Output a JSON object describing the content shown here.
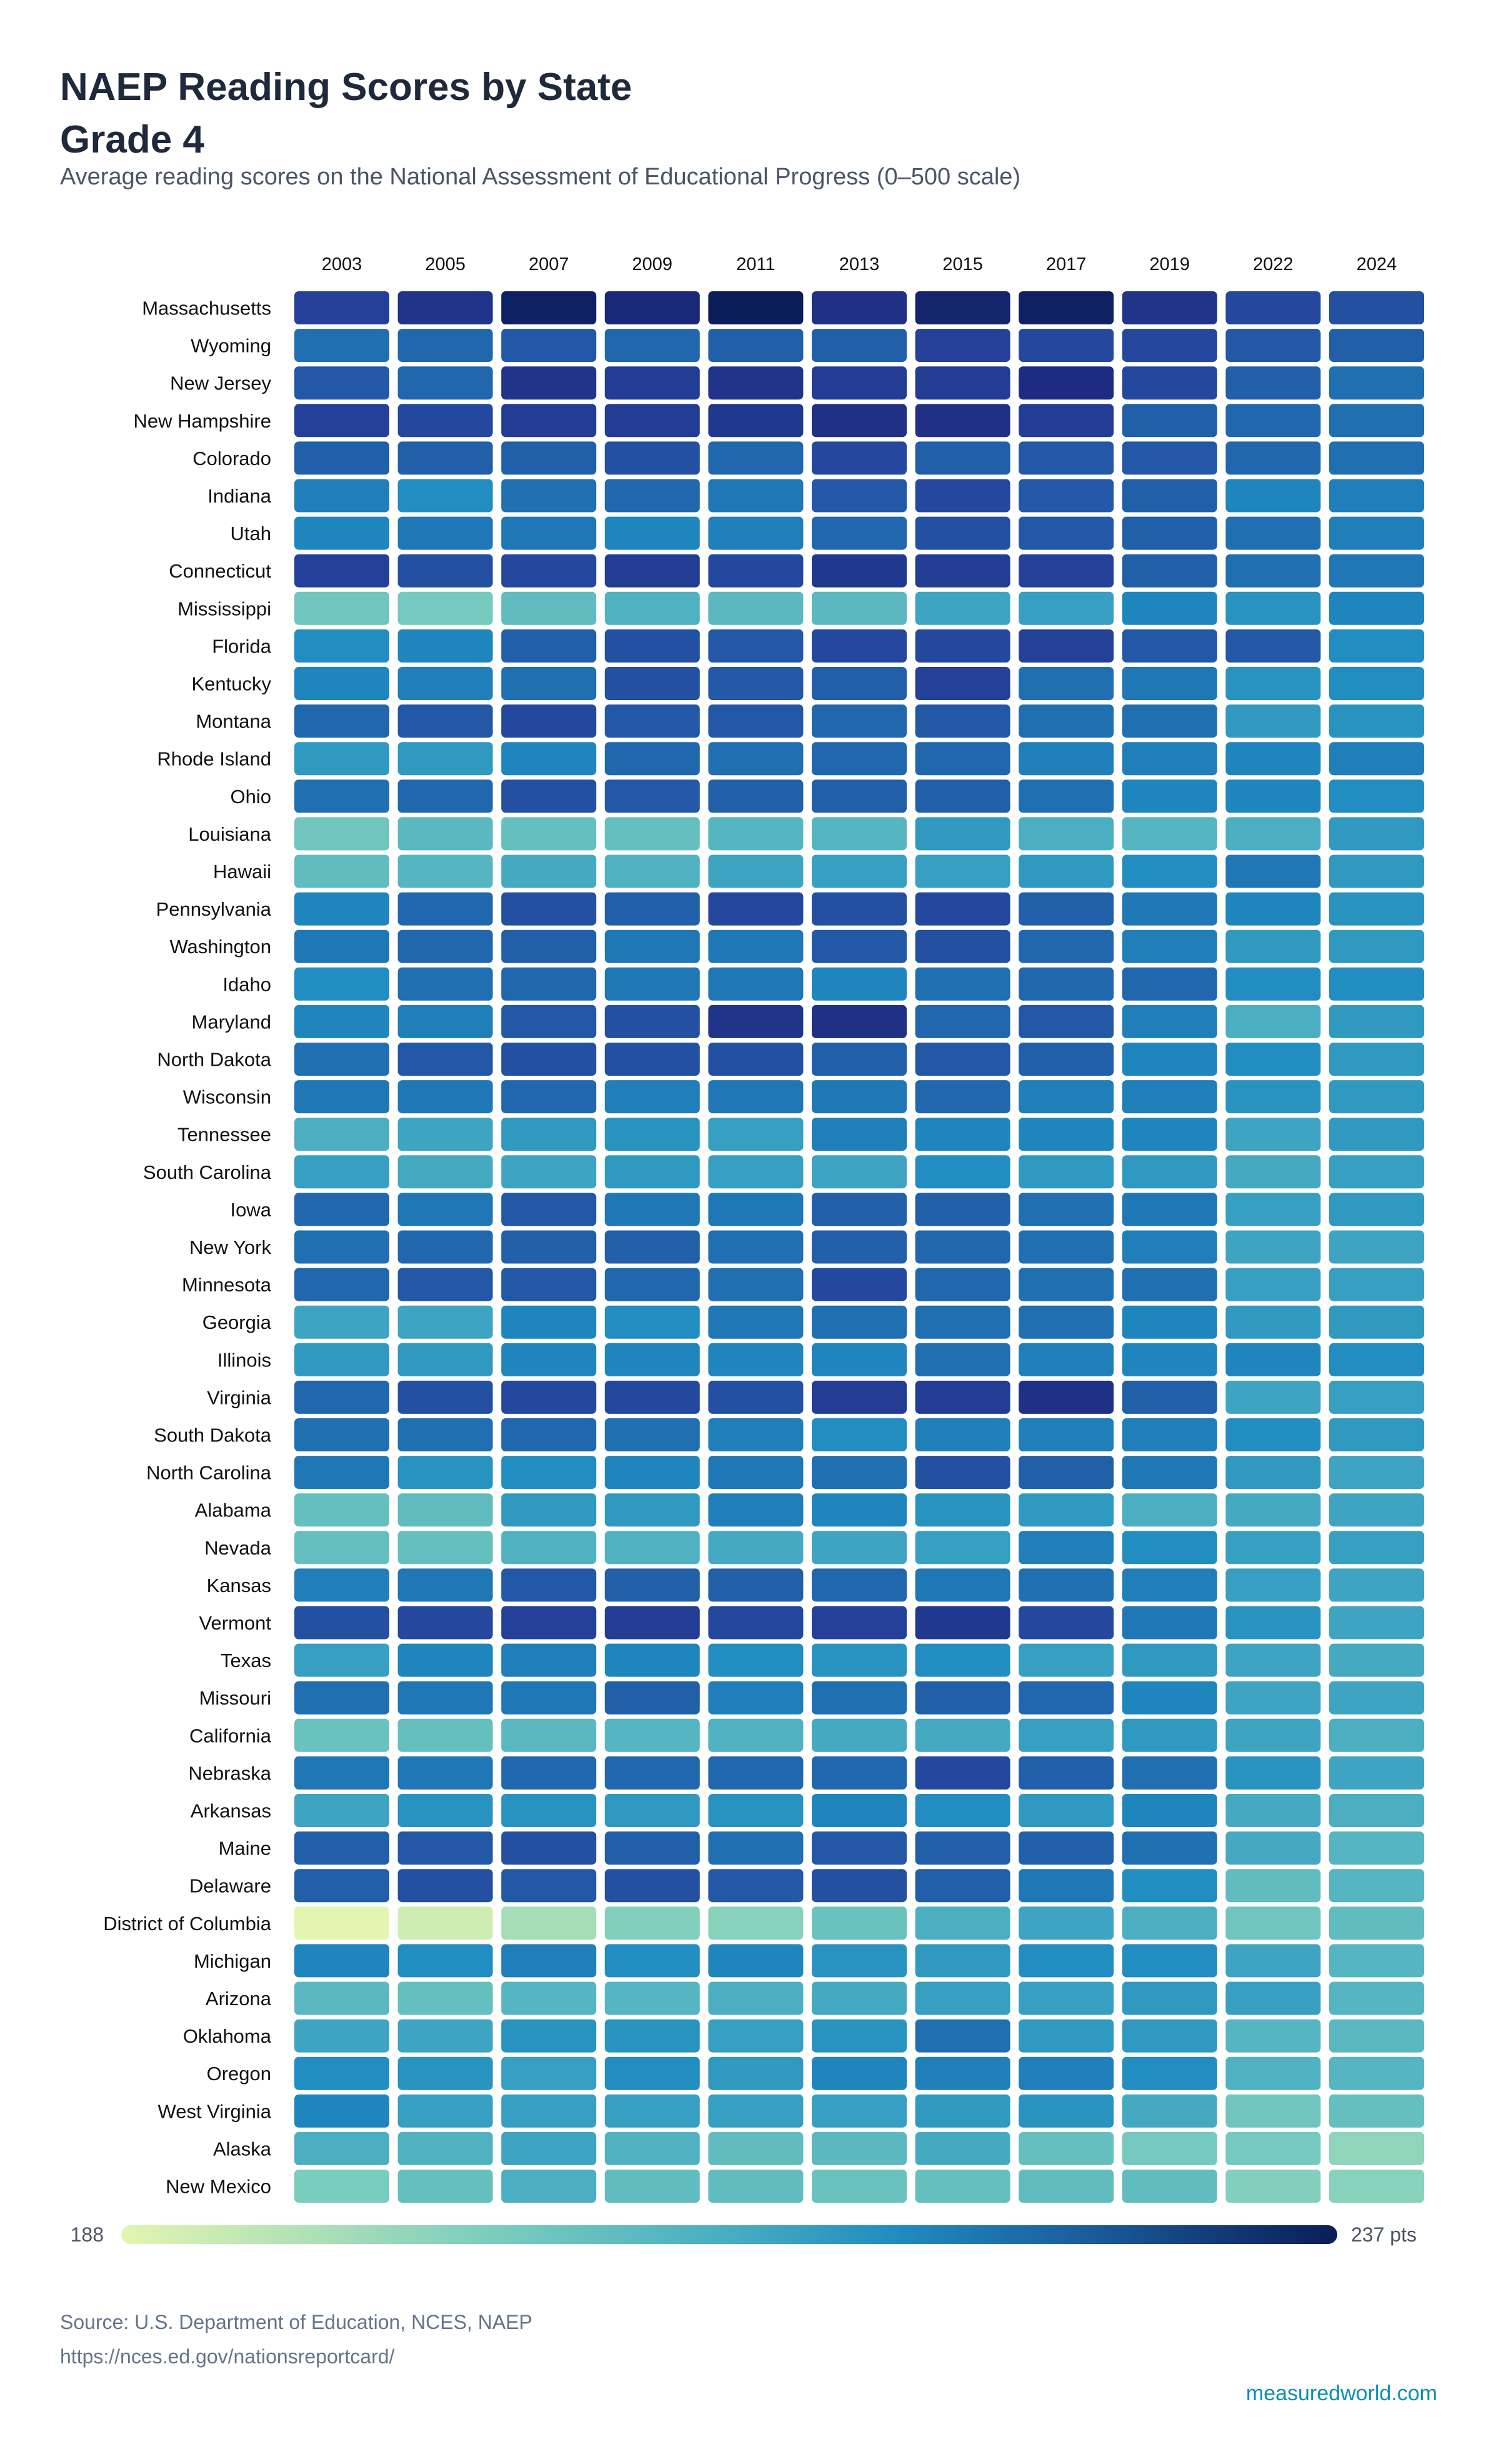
{
  "title_line1": "NAEP Reading Scores by State",
  "title_line2": "Grade 4",
  "subtitle": "Average reading scores on the National Assessment of Educational Progress (0–500 scale)",
  "footer": {
    "source": "Source: U.S. Department of Education, NCES, NAEP",
    "url": "https://nces.ed.gov/nationsreportcard/",
    "brand": "measuredworld.com"
  },
  "colors": {
    "low": "#e3f5b0",
    "high": "#0a1d58",
    "scale": "YlGnBu"
  },
  "chart_data": {
    "type": "heatmap",
    "title": "NAEP Reading Scores by State Grade 4",
    "x": [
      "2003",
      "2005",
      "2007",
      "2009",
      "2011",
      "2013",
      "2015",
      "2017",
      "2019",
      "2022",
      "2024"
    ],
    "y": [
      "Massachusetts",
      "Wyoming",
      "New Jersey",
      "New Hampshire",
      "Colorado",
      "Indiana",
      "Utah",
      "Connecticut",
      "Mississippi",
      "Florida",
      "Kentucky",
      "Montana",
      "Rhode Island",
      "Ohio",
      "Louisiana",
      "Hawaii",
      "Pennsylvania",
      "Washington",
      "Idaho",
      "Maryland",
      "North Dakota",
      "Wisconsin",
      "Tennessee",
      "South Carolina",
      "Iowa",
      "New York",
      "Minnesota",
      "Georgia",
      "Illinois",
      "Virginia",
      "South Dakota",
      "North Carolina",
      "Alabama",
      "Nevada",
      "Kansas",
      "Vermont",
      "Texas",
      "Missouri",
      "California",
      "Nebraska",
      "Arkansas",
      "Maine",
      "Delaware",
      "District of Columbia",
      "Michigan",
      "Arizona",
      "Oklahoma",
      "Oregon",
      "West Virginia",
      "Alaska",
      "New Mexico"
    ],
    "values": [
      [
        228,
        231,
        236,
        234,
        237,
        232,
        235,
        236,
        231,
        227,
        226
      ],
      [
        222,
        223,
        225,
        223,
        224,
        224,
        228,
        227,
        227,
        225,
        224
      ],
      [
        225,
        223,
        231,
        229,
        231,
        229,
        229,
        233,
        227,
        224,
        222
      ],
      [
        228,
        227,
        229,
        229,
        230,
        232,
        232,
        229,
        224,
        223,
        222
      ],
      [
        224,
        224,
        224,
        226,
        223,
        227,
        224,
        225,
        225,
        223,
        222
      ],
      [
        220,
        218,
        222,
        223,
        221,
        225,
        227,
        225,
        224,
        219,
        220
      ],
      [
        219,
        221,
        221,
        219,
        220,
        223,
        226,
        225,
        224,
        222,
        220
      ],
      [
        228,
        226,
        227,
        229,
        227,
        230,
        229,
        228,
        224,
        222,
        221
      ],
      [
        205,
        204,
        208,
        211,
        209,
        209,
        214,
        215,
        219,
        217,
        219
      ],
      [
        218,
        219,
        224,
        226,
        225,
        227,
        227,
        228,
        225,
        225,
        218
      ],
      [
        219,
        220,
        222,
        226,
        225,
        224,
        228,
        222,
        221,
        217,
        218
      ],
      [
        223,
        225,
        227,
        225,
        225,
        223,
        225,
        222,
        222,
        216,
        217
      ],
      [
        216,
        216,
        219,
        223,
        222,
        223,
        223,
        220,
        220,
        219,
        220
      ],
      [
        222,
        223,
        226,
        225,
        224,
        224,
        224,
        222,
        219,
        219,
        218
      ],
      [
        205,
        209,
        207,
        207,
        210,
        210,
        216,
        212,
        210,
        212,
        216
      ],
      [
        208,
        210,
        213,
        211,
        214,
        215,
        215,
        216,
        218,
        221,
        216
      ],
      [
        219,
        223,
        226,
        224,
        227,
        226,
        227,
        224,
        221,
        219,
        217
      ],
      [
        221,
        223,
        224,
        221,
        221,
        225,
        226,
        223,
        220,
        216,
        216
      ],
      [
        218,
        222,
        223,
        221,
        221,
        219,
        222,
        223,
        223,
        218,
        218
      ],
      [
        219,
        220,
        225,
        226,
        231,
        232,
        223,
        225,
        220,
        212,
        216
      ],
      [
        222,
        225,
        226,
        226,
        226,
        224,
        225,
        224,
        219,
        218,
        216
      ],
      [
        221,
        221,
        223,
        220,
        221,
        221,
        223,
        220,
        220,
        217,
        216
      ],
      [
        212,
        214,
        216,
        217,
        215,
        220,
        219,
        219,
        219,
        214,
        216
      ],
      [
        215,
        213,
        214,
        216,
        215,
        214,
        218,
        216,
        216,
        213,
        215
      ],
      [
        223,
        221,
        225,
        221,
        221,
        224,
        224,
        222,
        221,
        215,
        216
      ],
      [
        222,
        223,
        224,
        224,
        222,
        224,
        223,
        222,
        220,
        214,
        214
      ],
      [
        223,
        225,
        225,
        223,
        222,
        227,
        223,
        222,
        222,
        215,
        215
      ],
      [
        214,
        214,
        219,
        218,
        221,
        222,
        222,
        222,
        219,
        216,
        216
      ],
      [
        216,
        216,
        219,
        219,
        219,
        219,
        222,
        220,
        219,
        219,
        218
      ],
      [
        223,
        226,
        227,
        227,
        226,
        229,
        229,
        232,
        224,
        214,
        215
      ],
      [
        222,
        222,
        223,
        222,
        220,
        218,
        220,
        220,
        220,
        218,
        216
      ],
      [
        221,
        217,
        218,
        219,
        221,
        222,
        226,
        224,
        221,
        216,
        214
      ],
      [
        207,
        208,
        216,
        216,
        220,
        219,
        217,
        216,
        212,
        213,
        214
      ],
      [
        207,
        207,
        211,
        211,
        213,
        214,
        215,
        220,
        218,
        215,
        215
      ],
      [
        220,
        221,
        225,
        224,
        224,
        223,
        221,
        222,
        220,
        215,
        214
      ],
      [
        226,
        227,
        228,
        229,
        227,
        228,
        230,
        227,
        221,
        217,
        214
      ],
      [
        215,
        219,
        220,
        219,
        218,
        217,
        218,
        215,
        216,
        214,
        213
      ],
      [
        222,
        221,
        221,
        224,
        220,
        222,
        224,
        223,
        219,
        214,
        214
      ],
      [
        206,
        207,
        209,
        210,
        211,
        213,
        213,
        215,
        216,
        214,
        212
      ],
      [
        221,
        221,
        223,
        223,
        223,
        223,
        227,
        224,
        222,
        217,
        214
      ],
      [
        214,
        217,
        217,
        216,
        217,
        219,
        218,
        216,
        219,
        213,
        212
      ],
      [
        224,
        225,
        226,
        224,
        222,
        225,
        224,
        224,
        222,
        213,
        210
      ],
      [
        224,
        226,
        225,
        226,
        225,
        226,
        224,
        221,
        218,
        208,
        210
      ],
      [
        188,
        191,
        197,
        202,
        201,
        206,
        212,
        214,
        212,
        205,
        208
      ],
      [
        219,
        218,
        220,
        218,
        219,
        217,
        216,
        218,
        218,
        214,
        210
      ],
      [
        209,
        207,
        210,
        210,
        212,
        213,
        215,
        215,
        216,
        215,
        210
      ],
      [
        214,
        214,
        217,
        217,
        215,
        217,
        222,
        216,
        216,
        210,
        209
      ],
      [
        218,
        217,
        215,
        218,
        216,
        219,
        220,
        220,
        218,
        211,
        210
      ],
      [
        219,
        215,
        215,
        215,
        215,
        215,
        216,
        217,
        213,
        205,
        207
      ],
      [
        212,
        211,
        214,
        211,
        208,
        209,
        213,
        207,
        204,
        204,
        200
      ],
      [
        203,
        207,
        212,
        208,
        208,
        206,
        207,
        208,
        208,
        202,
        201
      ]
    ],
    "colorbar": {
      "min": 188,
      "max": 237,
      "min_label": "188",
      "max_label": "237 pts"
    },
    "legend": "bottom"
  }
}
